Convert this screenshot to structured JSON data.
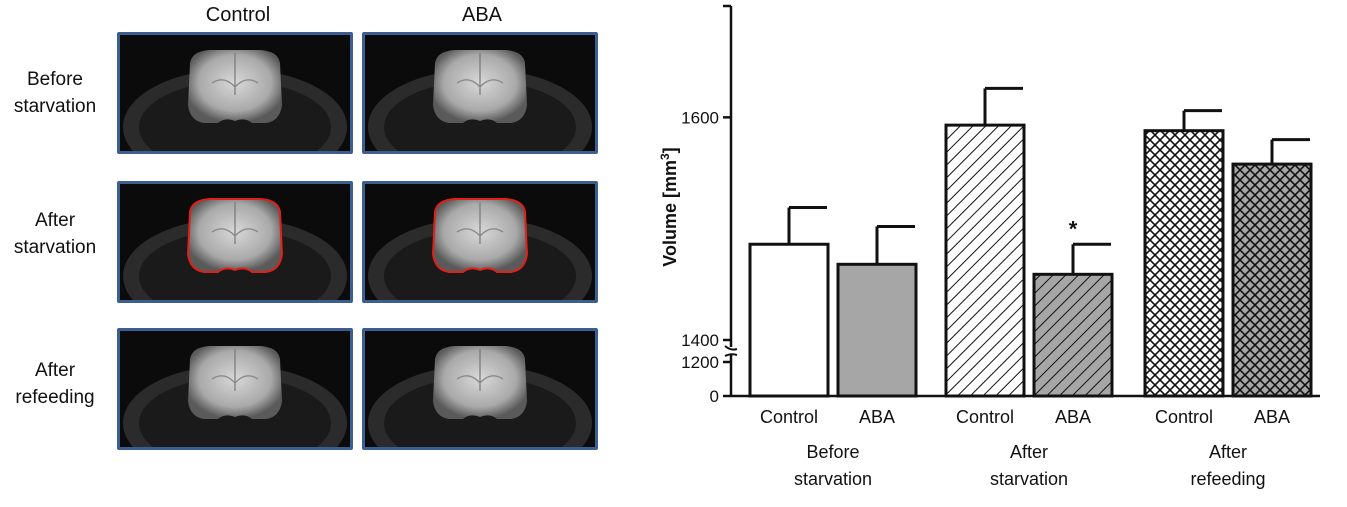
{
  "images": {
    "columns": [
      "Control",
      "ABA"
    ],
    "rows": [
      {
        "label_line1": "Before",
        "label_line2": "starvation"
      },
      {
        "label_line1": "After",
        "label_line2": "starvation"
      },
      {
        "label_line1": "After",
        "label_line2": "refeeding"
      }
    ]
  },
  "colors": {
    "panel_border": "#3c5f8f",
    "outline": "#e0201b",
    "control_fill": "#ffffff",
    "aba_fill": "#a6a6a6"
  },
  "chart_data": {
    "type": "bar",
    "ylabel": "Volume [mm",
    "ylabel_sup": "3",
    "ylabel_close": "]",
    "ylim_lower": [
      0,
      1200
    ],
    "ylim_upper": [
      1400,
      1700
    ],
    "yticks": [
      "1600",
      "1400",
      "1200",
      "0"
    ],
    "groups": [
      {
        "label_line1": "Before",
        "label_line2": "starvation",
        "bars": [
          {
            "name": "Control",
            "value": 1486,
            "error": 33,
            "pattern": "solid-white"
          },
          {
            "name": "ABA",
            "value": 1468,
            "error": 34,
            "pattern": "solid-grey"
          }
        ]
      },
      {
        "label_line1": "After",
        "label_line2": "starvation",
        "bars": [
          {
            "name": "Control",
            "value": 1593,
            "error": 33,
            "pattern": "hatch-white"
          },
          {
            "name": "ABA",
            "value": 1459,
            "error": 27,
            "pattern": "hatch-grey",
            "annotation": "*"
          }
        ]
      },
      {
        "label_line1": "After",
        "label_line2": "refeeding",
        "bars": [
          {
            "name": "Control",
            "value": 1588,
            "error": 18,
            "pattern": "cross-white"
          },
          {
            "name": "ABA",
            "value": 1558,
            "error": 22,
            "pattern": "cross-grey"
          }
        ]
      }
    ]
  }
}
